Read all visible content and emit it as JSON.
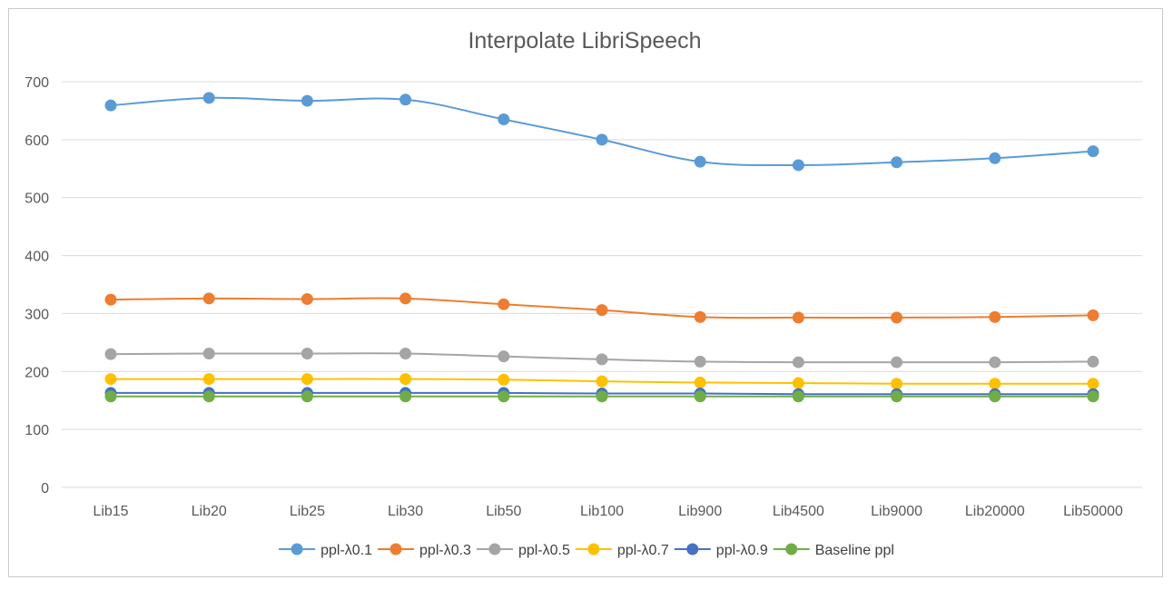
{
  "chart_data": {
    "type": "line",
    "title": "Interpolate LibriSpeech",
    "xlabel": "",
    "ylabel": "",
    "ylim": [
      0,
      700
    ],
    "yticks": [
      0,
      100,
      200,
      300,
      400,
      500,
      600,
      700
    ],
    "grid": true,
    "legend_position": "bottom",
    "categories": [
      "Lib15",
      "Lib20",
      "Lib25",
      "Lib30",
      "Lib50",
      "Lib100",
      "Lib900",
      "Lib4500",
      "Lib9000",
      "Lib20000",
      "Lib50000"
    ],
    "series": [
      {
        "name": "ppl-λ0.1",
        "color": "#5b9bd5",
        "values": [
          659,
          672,
          667,
          669,
          635,
          600,
          562,
          556,
          561,
          568,
          580
        ]
      },
      {
        "name": "ppl-λ0.3",
        "color": "#ed7d31",
        "values": [
          324,
          326,
          325,
          326,
          316,
          306,
          294,
          293,
          293,
          294,
          297
        ]
      },
      {
        "name": "ppl-λ0.5",
        "color": "#a5a5a5",
        "values": [
          230,
          231,
          231,
          231,
          226,
          221,
          217,
          216,
          216,
          216,
          217
        ]
      },
      {
        "name": "ppl-λ0.7",
        "color": "#ffc000",
        "values": [
          187,
          187,
          187,
          187,
          186,
          183,
          181,
          180,
          179,
          179,
          179
        ]
      },
      {
        "name": "ppl-λ0.9",
        "color": "#4472c4",
        "values": [
          163,
          163,
          163,
          163,
          163,
          162,
          162,
          161,
          161,
          161,
          161
        ]
      },
      {
        "name": "Baseline ppl",
        "color": "#70ad47",
        "values": [
          157,
          157,
          157,
          157,
          157,
          157,
          157,
          157,
          157,
          157,
          157
        ]
      }
    ]
  }
}
